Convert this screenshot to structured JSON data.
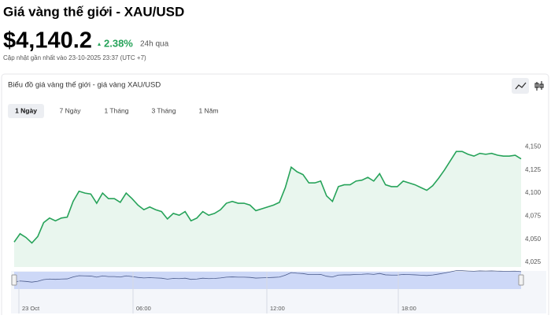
{
  "header": {
    "title": "Giá vàng thế giới - XAU/USD",
    "price": "$4,140.2",
    "change": "2.38%",
    "change_period": "24h qua",
    "updated": "Cập nhật gần nhất vào 23-10-2025 23:37 (UTC +7)"
  },
  "card": {
    "title": "Biểu đồ giá vàng thế giới - giá vàng XAU/USD",
    "ranges": [
      "1 Ngày",
      "7 Ngày",
      "1 Tháng",
      "3 Tháng",
      "1 Năm"
    ]
  },
  "chart_data": {
    "type": "line",
    "color": "#27a35a",
    "area_color": "#e9f6ee",
    "values": [
      4047,
      4056,
      4052,
      4046,
      4053,
      4068,
      4073,
      4070,
      4073,
      4074,
      4091,
      4102,
      4100,
      4099,
      4089,
      4100,
      4094,
      4094,
      4090,
      4100,
      4094,
      4087,
      4082,
      4085,
      4082,
      4080,
      4072,
      4078,
      4076,
      4080,
      4070,
      4073,
      4080,
      4076,
      4078,
      4082,
      4089,
      4091,
      4089,
      4089,
      4087,
      4081,
      4083,
      4085,
      4087,
      4090,
      4106,
      4128,
      4123,
      4120,
      4111,
      4111,
      4113,
      4097,
      4091,
      4107,
      4109,
      4109,
      4113,
      4114,
      4117,
      4113,
      4121,
      4109,
      4107,
      4107,
      4113,
      4111,
      4109,
      4106,
      4103,
      4108,
      4116,
      4125,
      4135,
      4145,
      4145,
      4142,
      4140,
      4143,
      4142,
      4143,
      4141,
      4140,
      4140,
      4141,
      4137
    ],
    "ylim": [
      4020,
      4170
    ],
    "yticks": [
      {
        "value": 4025,
        "label": "4,025"
      },
      {
        "value": 4050,
        "label": "4,050"
      },
      {
        "value": 4075,
        "label": "4,075"
      },
      {
        "value": 4100,
        "label": "4,100"
      },
      {
        "value": 4125,
        "label": "4,125"
      },
      {
        "value": 4150,
        "label": "4,150"
      }
    ]
  },
  "navigator": {
    "labels": [
      "23 Oct",
      "06:00",
      "12:00",
      "18:00"
    ]
  }
}
